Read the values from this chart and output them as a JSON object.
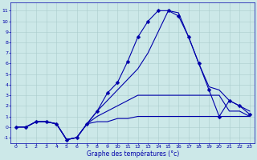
{
  "xlabel": "Graphe des températures (°c)",
  "bg_color": "#cce8e8",
  "line_color": "#0000aa",
  "grid_color": "#aacccc",
  "hours": [
    0,
    1,
    2,
    3,
    4,
    5,
    6,
    7,
    8,
    9,
    10,
    11,
    12,
    13,
    14,
    15,
    16,
    17,
    18,
    19,
    20,
    21,
    22,
    23
  ],
  "temp_main": [
    0.0,
    0.0,
    0.5,
    0.5,
    0.3,
    -1.2,
    -1.0,
    0.3,
    1.5,
    3.2,
    4.2,
    6.2,
    8.5,
    10.0,
    11.0,
    11.0,
    10.5,
    8.5,
    6.0,
    3.5,
    1.0,
    2.5,
    2.0,
    1.2
  ],
  "temp_min": [
    0.0,
    0.0,
    0.5,
    0.5,
    0.3,
    -1.2,
    -1.0,
    0.3,
    0.5,
    0.5,
    0.8,
    0.8,
    1.0,
    1.0,
    1.0,
    1.0,
    1.0,
    1.0,
    1.0,
    1.0,
    1.0,
    1.0,
    1.0,
    1.0
  ],
  "temp_max": [
    0.0,
    0.0,
    0.5,
    0.5,
    0.3,
    -1.2,
    -1.0,
    0.3,
    1.5,
    2.5,
    3.5,
    4.5,
    5.5,
    7.0,
    9.0,
    11.0,
    10.8,
    8.5,
    6.0,
    3.8,
    3.5,
    2.5,
    2.0,
    1.5
  ],
  "temp_avg": [
    0.0,
    0.0,
    0.5,
    0.5,
    0.3,
    -1.2,
    -1.0,
    0.3,
    1.0,
    1.5,
    2.0,
    2.5,
    3.0,
    3.0,
    3.0,
    3.0,
    3.0,
    3.0,
    3.0,
    3.0,
    3.0,
    1.5,
    1.5,
    1.0
  ],
  "ylim": [
    -1.5,
    11.8
  ],
  "yticks": [
    -1,
    0,
    1,
    2,
    3,
    4,
    5,
    6,
    7,
    8,
    9,
    10,
    11
  ],
  "xlim": [
    -0.5,
    23.5
  ],
  "xticks": [
    0,
    1,
    2,
    3,
    4,
    5,
    6,
    7,
    8,
    9,
    10,
    11,
    12,
    13,
    14,
    15,
    16,
    17,
    18,
    19,
    20,
    21,
    22,
    23
  ],
  "marker_size": 2.5,
  "line_width": 0.8,
  "tick_fontsize": 4.5,
  "xlabel_fontsize": 5.5
}
